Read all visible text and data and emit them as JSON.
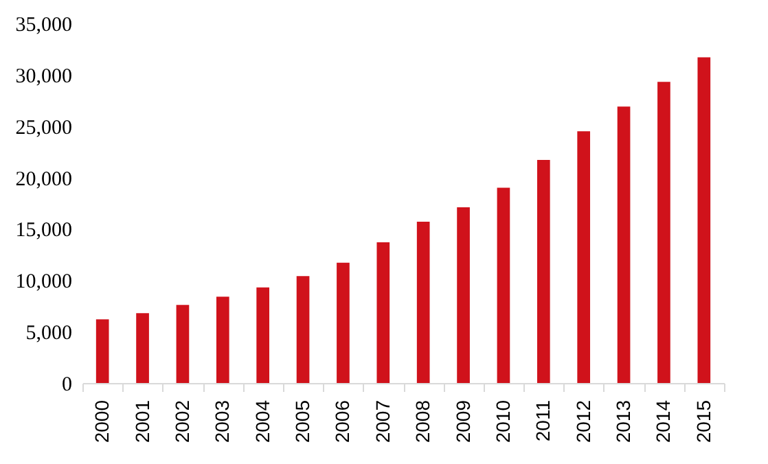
{
  "chart_data": {
    "type": "bar",
    "categories": [
      "2000",
      "2001",
      "2002",
      "2003",
      "2004",
      "2005",
      "2006",
      "2007",
      "2008",
      "2009",
      "2010",
      "2011",
      "2012",
      "2013",
      "2014",
      "2015"
    ],
    "values": [
      6200,
      6800,
      7600,
      8400,
      9300,
      10400,
      11700,
      13700,
      15700,
      17100,
      19000,
      21700,
      24500,
      26900,
      29300,
      31700
    ],
    "color": "#d0121b",
    "ylim": [
      0,
      35000
    ],
    "yticks": [
      0,
      {
        "value": 5000,
        "label": "5,000"
      },
      {
        "value": 10000,
        "label": "10,000"
      },
      {
        "value": 15000,
        "label": "15,000"
      },
      {
        "value": 20000,
        "label": "20,000"
      },
      {
        "value": 25000,
        "label": "25,000"
      },
      {
        "value": 30000,
        "label": "30,000"
      },
      {
        "value": 35000,
        "label": "35,000"
      }
    ],
    "grid": false
  }
}
